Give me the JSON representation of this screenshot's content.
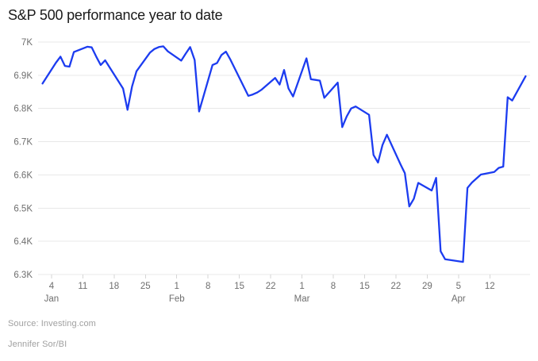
{
  "title": "S&P 500 performance year to date",
  "footer": {
    "source": "Source: Investing.com",
    "byline": "Jennifer Sor/BI"
  },
  "colors": {
    "line": "#1c3cf0",
    "grid": "#e8e8e8",
    "tick": "#d6d6d6",
    "axis_text": "#6e6e6e",
    "title_text": "#1a1a1a",
    "muted_text": "#a0a0a0"
  },
  "chart_data": {
    "type": "line",
    "title": "S&P 500 performance year to date",
    "xlabel": "",
    "ylabel": "",
    "legend": "none",
    "grid": "horizontal",
    "ylim": [
      6300,
      7000
    ],
    "x_domain": [
      "Jan 1",
      "Apr 21"
    ],
    "series": [
      {
        "name": "S&P 500",
        "dates": [
          "Jan 2",
          "Jan 5",
          "Jan 6",
          "Jan 7",
          "Jan 8",
          "Jan 9",
          "Jan 12",
          "Jan 13",
          "Jan 14",
          "Jan 15",
          "Jan 16",
          "Jan 20",
          "Jan 21",
          "Jan 22",
          "Jan 23",
          "Jan 26",
          "Jan 27",
          "Jan 28",
          "Jan 29",
          "Jan 30",
          "Feb 2",
          "Feb 3",
          "Feb 4",
          "Feb 5",
          "Feb 6",
          "Feb 9",
          "Feb 10",
          "Feb 11",
          "Feb 12",
          "Feb 13",
          "Feb 17",
          "Feb 18",
          "Feb 19",
          "Feb 20",
          "Feb 23",
          "Feb 24",
          "Feb 25",
          "Feb 26",
          "Feb 27",
          "Mar 2",
          "Mar 3",
          "Mar 4",
          "Mar 5",
          "Mar 6",
          "Mar 9",
          "Mar 10",
          "Mar 11",
          "Mar 12",
          "Mar 13",
          "Mar 16",
          "Mar 17",
          "Mar 18",
          "Mar 19",
          "Mar 20",
          "Mar 23",
          "Mar 24",
          "Mar 25",
          "Mar 26",
          "Mar 27",
          "Mar 30",
          "Mar 31",
          "Apr 1",
          "Apr 2",
          "Apr 6",
          "Apr 7",
          "Apr 8",
          "Apr 9",
          "Apr 10",
          "Apr 13",
          "Apr 14",
          "Apr 15",
          "Apr 16",
          "Apr 17",
          "Apr 20"
        ],
        "values": [
          6875,
          6938,
          6956,
          6928,
          6926,
          6970,
          6986,
          6984,
          6956,
          6931,
          6945,
          6860,
          6796,
          6866,
          6912,
          6968,
          6979,
          6985,
          6987,
          6972,
          6944,
          6965,
          6985,
          6946,
          6791,
          6931,
          6937,
          6961,
          6971,
          6947,
          6838,
          6842,
          6848,
          6857,
          6892,
          6872,
          6916,
          6860,
          6836,
          6951,
          6888,
          6886,
          6884,
          6832,
          6878,
          6744,
          6776,
          6800,
          6806,
          6781,
          6660,
          6637,
          6690,
          6721,
          6633,
          6605,
          6505,
          6528,
          6576,
          6553,
          6591,
          6370,
          6346,
          6338,
          6561,
          6577,
          6589,
          6601,
          6609,
          6621,
          6625,
          6834,
          6824,
          6897
        ]
      }
    ],
    "x_ticks": [
      {
        "m": "Jan",
        "d": 4,
        "label": "4",
        "month_label": "Jan"
      },
      {
        "m": "Jan",
        "d": 11,
        "label": "11"
      },
      {
        "m": "Jan",
        "d": 18,
        "label": "18"
      },
      {
        "m": "Jan",
        "d": 25,
        "label": "25"
      },
      {
        "m": "Feb",
        "d": 1,
        "label": "1",
        "month_label": "Feb"
      },
      {
        "m": "Feb",
        "d": 8,
        "label": "8"
      },
      {
        "m": "Feb",
        "d": 15,
        "label": "15"
      },
      {
        "m": "Feb",
        "d": 22,
        "label": "22"
      },
      {
        "m": "Mar",
        "d": 1,
        "label": "1",
        "month_label": "Mar"
      },
      {
        "m": "Mar",
        "d": 8,
        "label": "8"
      },
      {
        "m": "Mar",
        "d": 15,
        "label": "15"
      },
      {
        "m": "Mar",
        "d": 22,
        "label": "22"
      },
      {
        "m": "Mar",
        "d": 29,
        "label": "29"
      },
      {
        "m": "Apr",
        "d": 5,
        "label": "5",
        "month_label": "Apr"
      },
      {
        "m": "Apr",
        "d": 12,
        "label": "12"
      }
    ],
    "y_ticks": [
      {
        "value": 7000,
        "label": "7K"
      },
      {
        "value": 6900,
        "label": "6.9K"
      },
      {
        "value": 6800,
        "label": "6.8K"
      },
      {
        "value": 6700,
        "label": "6.7K"
      },
      {
        "value": 6600,
        "label": "6.6K"
      },
      {
        "value": 6500,
        "label": "6.5K"
      },
      {
        "value": 6400,
        "label": "6.4K"
      },
      {
        "value": 6300,
        "label": "6.3K"
      }
    ]
  }
}
